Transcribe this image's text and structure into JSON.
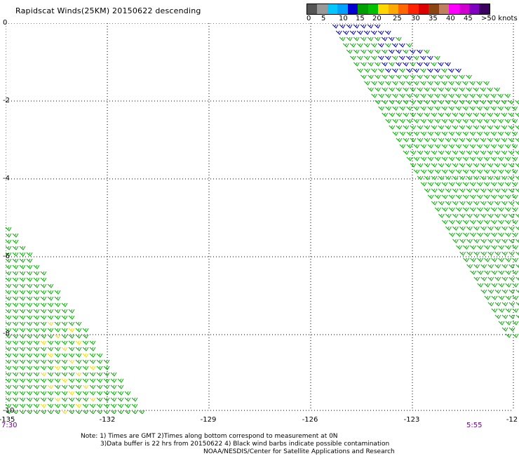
{
  "title": "Rapidscat Winds(25KM) 20150622 descending",
  "colorbar": {
    "colors": [
      "#555555",
      "#999999",
      "#00c8ff",
      "#00a0ff",
      "#0000d0",
      "#00a000",
      "#00c000",
      "#ffd700",
      "#ffaa00",
      "#ff6600",
      "#ff2200",
      "#dd0000",
      "#8b4513",
      "#c08060",
      "#ff00ff",
      "#d000d0",
      "#8000c0",
      "#3a0060"
    ],
    "labels": [
      "0",
      "5",
      "10",
      "15",
      "20",
      "25",
      "30",
      "35",
      "40",
      "45",
      ">50 knots"
    ]
  },
  "axes": {
    "x_ticks": [
      "-135",
      "-132",
      "-129",
      "-126",
      "-123",
      "-12"
    ],
    "y_ticks": [
      "0",
      "-2",
      "-4",
      "-6",
      "-8",
      "-10"
    ]
  },
  "times": {
    "left": "7:30",
    "right": "5:55"
  },
  "notes": {
    "line1": "Note: 1) Times are GMT 2)Times along bottom correspond to measurement at 0N",
    "line2": "3)Data buffer is 22 hrs from 20150622 4) Black wind barbs indicate possible contamination",
    "line3": "NOAA/NESDIS/Center for Satellite Applications and Research"
  },
  "barb_colors": {
    "low": "#00b000",
    "mid": "#0000cc",
    "high": "#ffd700"
  }
}
